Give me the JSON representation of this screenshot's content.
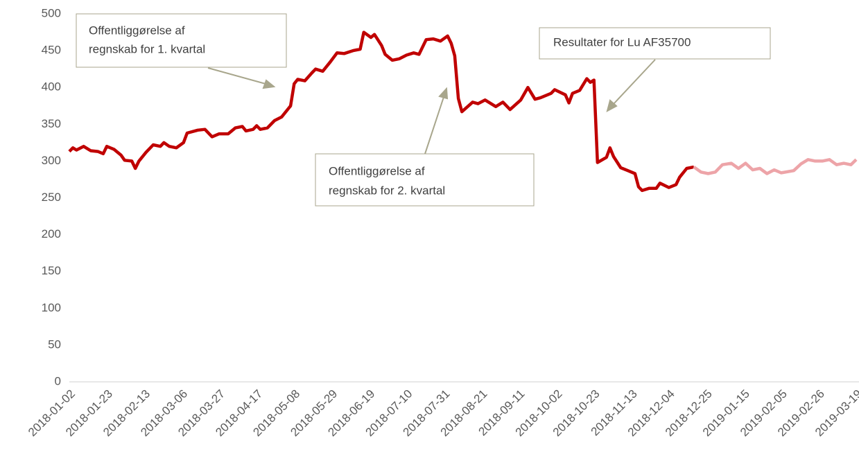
{
  "chart_data": {
    "type": "line",
    "xlim": [
      "2018-01-02",
      "2019-03-19"
    ],
    "xticks": [
      "2018-01-02",
      "2018-01-23",
      "2018-02-13",
      "2018-03-06",
      "2018-03-27",
      "2018-04-17",
      "2018-05-08",
      "2018-05-29",
      "2018-06-19",
      "2018-07-10",
      "2018-07-31",
      "2018-08-21",
      "2018-09-11",
      "2018-10-02",
      "2018-10-23",
      "2018-11-13",
      "2018-12-04",
      "2018-12-25",
      "2019-01-15",
      "2019-02-05",
      "2019-02-26",
      "2019-03-19"
    ],
    "ylim": [
      0,
      500
    ],
    "yticks": [
      0,
      50,
      100,
      150,
      200,
      250,
      300,
      350,
      400,
      450,
      500
    ],
    "grid": false,
    "series": [
      {
        "color": "#c00000",
        "x": [
          "2018-01-02",
          "2018-01-04",
          "2018-01-06",
          "2018-01-10",
          "2018-01-14",
          "2018-01-18",
          "2018-01-21",
          "2018-01-23",
          "2018-01-27",
          "2018-01-31",
          "2018-02-02",
          "2018-02-06",
          "2018-02-08",
          "2018-02-10",
          "2018-02-14",
          "2018-02-18",
          "2018-02-22",
          "2018-02-24",
          "2018-02-27",
          "2018-03-03",
          "2018-03-07",
          "2018-03-09",
          "2018-03-15",
          "2018-03-19",
          "2018-03-23",
          "2018-03-27",
          "2018-04-01",
          "2018-04-05",
          "2018-04-09",
          "2018-04-11",
          "2018-04-15",
          "2018-04-17",
          "2018-04-19",
          "2018-04-23",
          "2018-04-27",
          "2018-05-01",
          "2018-05-05",
          "2018-05-06",
          "2018-05-08",
          "2018-05-10",
          "2018-05-14",
          "2018-05-18",
          "2018-05-20",
          "2018-05-24",
          "2018-05-28",
          "2018-06-01",
          "2018-06-05",
          "2018-06-10",
          "2018-06-14",
          "2018-06-16",
          "2018-06-20",
          "2018-06-22",
          "2018-06-26",
          "2018-06-28",
          "2018-07-02",
          "2018-07-06",
          "2018-07-10",
          "2018-07-14",
          "2018-07-17",
          "2018-07-21",
          "2018-07-25",
          "2018-07-29",
          "2018-08-02",
          "2018-08-04",
          "2018-08-06",
          "2018-08-08",
          "2018-08-10",
          "2018-08-16",
          "2018-08-19",
          "2018-08-23",
          "2018-08-29",
          "2018-09-02",
          "2018-09-06",
          "2018-09-12",
          "2018-09-16",
          "2018-09-20",
          "2018-09-23",
          "2018-09-29",
          "2018-10-01",
          "2018-10-07",
          "2018-10-09",
          "2018-10-11",
          "2018-10-15",
          "2018-10-19",
          "2018-10-21",
          "2018-10-23",
          "2018-10-25",
          "2018-10-30",
          "2018-11-01",
          "2018-11-03",
          "2018-11-07",
          "2018-11-11",
          "2018-11-15",
          "2018-11-17",
          "2018-11-19",
          "2018-11-23",
          "2018-11-27",
          "2018-11-29",
          "2018-12-04",
          "2018-12-08",
          "2018-12-10",
          "2018-12-14",
          "2018-12-18"
        ],
        "values": [
          313,
          318,
          315,
          320,
          314,
          313,
          310,
          320,
          316,
          308,
          301,
          300,
          290,
          300,
          312,
          322,
          320,
          325,
          320,
          318,
          325,
          338,
          342,
          343,
          333,
          337,
          337,
          345,
          347,
          341,
          343,
          348,
          343,
          345,
          355,
          360,
          372,
          375,
          405,
          411,
          409,
          420,
          425,
          422,
          434,
          447,
          446,
          450,
          452,
          475,
          468,
          472,
          457,
          445,
          437,
          439,
          444,
          447,
          445,
          465,
          466,
          463,
          470,
          460,
          443,
          385,
          367,
          380,
          378,
          383,
          374,
          380,
          370,
          383,
          400,
          384,
          386,
          392,
          397,
          390,
          379,
          392,
          396,
          412,
          407,
          410,
          298,
          305,
          318,
          306,
          291,
          287,
          283,
          265,
          260,
          263,
          263,
          270,
          264,
          268,
          278,
          290,
          292
        ]
      },
      {
        "color": "#eda4a8",
        "x": [
          "2018-12-18",
          "2018-12-22",
          "2018-12-26",
          "2018-12-30",
          "2019-01-03",
          "2019-01-08",
          "2019-01-12",
          "2019-01-16",
          "2019-01-20",
          "2019-01-24",
          "2019-01-28",
          "2019-02-01",
          "2019-02-05",
          "2019-02-12",
          "2019-02-16",
          "2019-02-20",
          "2019-02-24",
          "2019-02-28",
          "2019-03-04",
          "2019-03-08",
          "2019-03-12",
          "2019-03-16",
          "2019-03-19"
        ],
        "values": [
          292,
          285,
          283,
          285,
          295,
          297,
          290,
          297,
          288,
          290,
          283,
          288,
          284,
          287,
          296,
          302,
          300,
          300,
          302,
          295,
          297,
          295,
          302
        ]
      }
    ],
    "annotations": [
      {
        "text": [
          "Offentliggørelse af",
          "regnskab for 1. kvartal"
        ]
      },
      {
        "text": [
          "Offentliggørelse af",
          "regnskab for 2. kvartal"
        ]
      },
      {
        "text": [
          "Resultater for Lu AF35700"
        ]
      }
    ]
  }
}
